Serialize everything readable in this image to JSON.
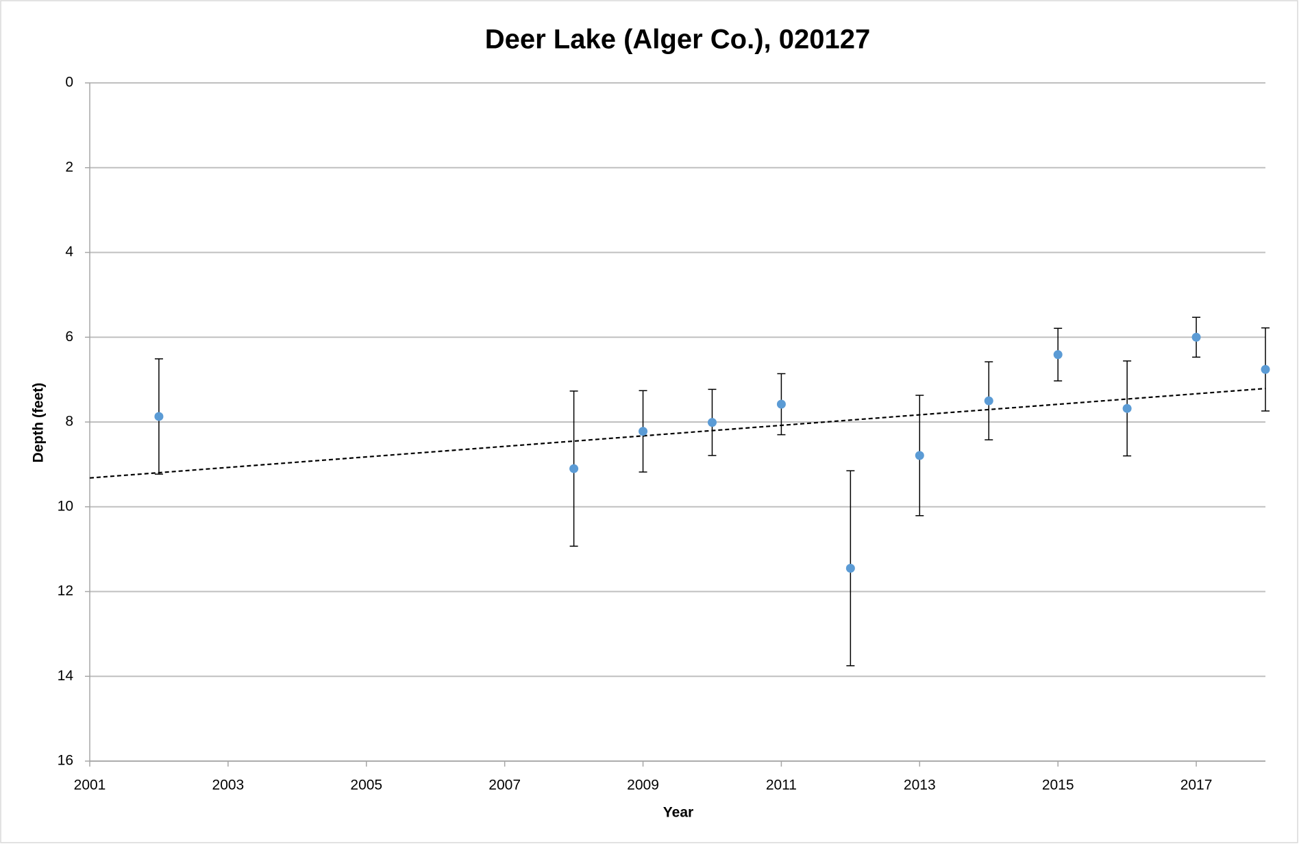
{
  "chart_data": {
    "type": "scatter",
    "title": "Deer Lake (Alger Co.), 020127",
    "x_label": "Year",
    "y_label": "Depth (feet)",
    "x": [
      2002,
      2008,
      2009,
      2010,
      2011,
      2012,
      2013,
      2014,
      2015,
      2016,
      2017,
      2018
    ],
    "series": [
      {
        "color": "#5b9bd5",
        "values": [
          7.87,
          9.1,
          8.22,
          8.01,
          7.58,
          11.45,
          8.79,
          7.5,
          6.41,
          7.68,
          6.0,
          6.76
        ],
        "errors": [
          1.36,
          1.83,
          0.96,
          0.78,
          0.72,
          2.3,
          1.42,
          0.92,
          0.62,
          1.12,
          0.47,
          0.98
        ]
      }
    ],
    "trendline": {
      "x": [
        2001,
        2018
      ],
      "values": [
        9.32,
        7.21
      ],
      "color": "#000000",
      "dashed": true
    },
    "xlim": [
      2001,
      2018
    ],
    "xticks": [
      2001,
      2003,
      2005,
      2007,
      2009,
      2011,
      2013,
      2015,
      2017
    ],
    "ylim": [
      0,
      16
    ],
    "yticks": [
      0,
      2,
      4,
      6,
      8,
      10,
      12,
      14,
      16
    ],
    "y_reversed": true,
    "grid": true
  }
}
